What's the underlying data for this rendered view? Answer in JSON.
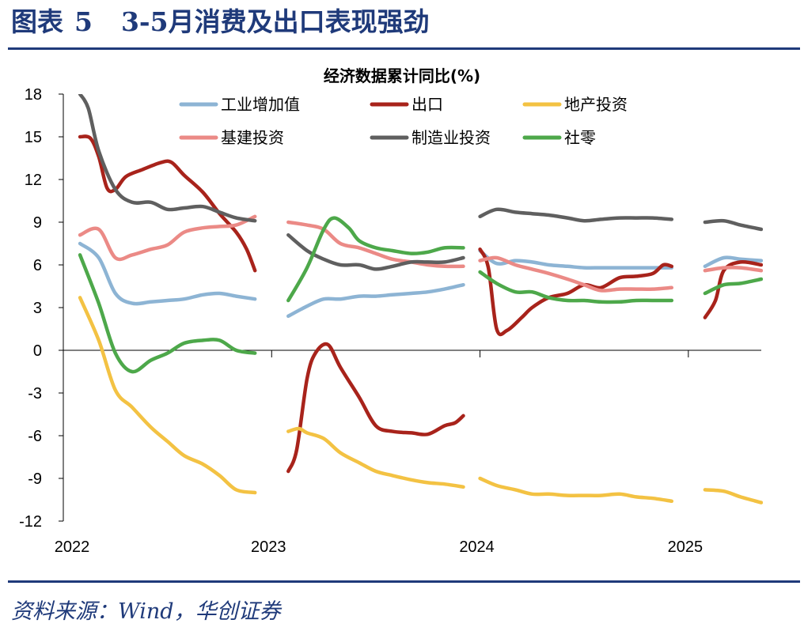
{
  "figure": {
    "label": "图表",
    "number": "5",
    "title": "3-5月消费及出口表现强劲",
    "source": "资料来源：Wind，华创证券"
  },
  "chart_data": {
    "type": "line",
    "title": "经济数据累计同比(%)",
    "xlabel": "",
    "ylabel": "",
    "ylim": [
      -12,
      18
    ],
    "y_ticks": [
      "18",
      "15",
      "12",
      "9",
      "6",
      "3",
      "0",
      "-3",
      "-6",
      "-9",
      "-12"
    ],
    "x_ticks": [
      "2022",
      "2023",
      "2024",
      "2025"
    ],
    "x_range": [
      2022.0,
      2025.35
    ],
    "legend_position": "top",
    "grid": false,
    "series": [
      {
        "name": "工业增加值",
        "color": "#8db4d4",
        "segments": [
          [
            [
              2022.08,
              7.5
            ],
            [
              2022.17,
              6.5
            ],
            [
              2022.25,
              4.0
            ],
            [
              2022.33,
              3.3
            ],
            [
              2022.42,
              3.4
            ],
            [
              2022.5,
              3.5
            ],
            [
              2022.58,
              3.6
            ],
            [
              2022.67,
              3.9
            ],
            [
              2022.75,
              4.0
            ],
            [
              2022.83,
              3.8
            ],
            [
              2022.92,
              3.6
            ]
          ],
          [
            [
              2023.08,
              2.4
            ],
            [
              2023.17,
              3.1
            ],
            [
              2023.25,
              3.6
            ],
            [
              2023.33,
              3.6
            ],
            [
              2023.42,
              3.8
            ],
            [
              2023.5,
              3.8
            ],
            [
              2023.58,
              3.9
            ],
            [
              2023.67,
              4.0
            ],
            [
              2023.75,
              4.1
            ],
            [
              2023.83,
              4.3
            ],
            [
              2023.92,
              4.6
            ]
          ],
          [
            [
              2024.0,
              7.0
            ],
            [
              2024.08,
              6.1
            ],
            [
              2024.17,
              6.3
            ],
            [
              2024.25,
              6.2
            ],
            [
              2024.33,
              6.0
            ],
            [
              2024.42,
              5.9
            ],
            [
              2024.5,
              5.8
            ],
            [
              2024.58,
              5.8
            ],
            [
              2024.67,
              5.8
            ],
            [
              2024.75,
              5.8
            ],
            [
              2024.83,
              5.8
            ],
            [
              2024.92,
              5.8
            ]
          ],
          [
            [
              2025.08,
              5.9
            ],
            [
              2025.17,
              6.5
            ],
            [
              2025.25,
              6.4
            ],
            [
              2025.35,
              6.3
            ]
          ]
        ]
      },
      {
        "name": "出口",
        "color": "#a8231b",
        "segments": [
          [
            [
              2022.08,
              15.0
            ],
            [
              2022.13,
              14.9
            ],
            [
              2022.17,
              13.6
            ],
            [
              2022.21,
              11.4
            ],
            [
              2022.25,
              11.3
            ],
            [
              2022.3,
              12.2
            ],
            [
              2022.38,
              12.7
            ],
            [
              2022.47,
              13.2
            ],
            [
              2022.52,
              13.2
            ],
            [
              2022.58,
              12.3
            ],
            [
              2022.67,
              11.1
            ],
            [
              2022.75,
              9.6
            ],
            [
              2022.83,
              8.3
            ],
            [
              2022.88,
              7.1
            ],
            [
              2022.92,
              5.6
            ]
          ],
          [
            [
              2023.08,
              -8.5
            ],
            [
              2023.12,
              -7.0
            ],
            [
              2023.17,
              -2.0
            ],
            [
              2023.21,
              -0.2
            ],
            [
              2023.27,
              0.4
            ],
            [
              2023.33,
              -1.2
            ],
            [
              2023.42,
              -3.3
            ],
            [
              2023.5,
              -5.3
            ],
            [
              2023.58,
              -5.7
            ],
            [
              2023.67,
              -5.8
            ],
            [
              2023.75,
              -5.9
            ],
            [
              2023.83,
              -5.3
            ],
            [
              2023.88,
              -5.1
            ],
            [
              2023.92,
              -4.6
            ]
          ],
          [
            [
              2024.0,
              7.1
            ],
            [
              2024.04,
              5.8
            ],
            [
              2024.08,
              1.5
            ],
            [
              2024.13,
              1.4
            ],
            [
              2024.2,
              2.3
            ],
            [
              2024.25,
              3.0
            ],
            [
              2024.33,
              3.7
            ],
            [
              2024.42,
              4.0
            ],
            [
              2024.5,
              4.6
            ],
            [
              2024.58,
              4.4
            ],
            [
              2024.67,
              5.1
            ],
            [
              2024.75,
              5.2
            ],
            [
              2024.83,
              5.4
            ],
            [
              2024.88,
              6.0
            ],
            [
              2024.92,
              5.9
            ]
          ],
          [
            [
              2025.08,
              2.3
            ],
            [
              2025.13,
              3.5
            ],
            [
              2025.17,
              5.6
            ],
            [
              2025.25,
              6.2
            ],
            [
              2025.35,
              6.0
            ]
          ]
        ]
      },
      {
        "name": "地产投资",
        "color": "#f3c243",
        "segments": [
          [
            [
              2022.08,
              3.7
            ],
            [
              2022.17,
              0.7
            ],
            [
              2022.25,
              -2.8
            ],
            [
              2022.33,
              -4.0
            ],
            [
              2022.42,
              -5.4
            ],
            [
              2022.5,
              -6.4
            ],
            [
              2022.58,
              -7.4
            ],
            [
              2022.67,
              -8.0
            ],
            [
              2022.75,
              -8.8
            ],
            [
              2022.83,
              -9.8
            ],
            [
              2022.92,
              -10.0
            ]
          ],
          [
            [
              2023.08,
              -5.7
            ],
            [
              2023.13,
              -5.5
            ],
            [
              2023.17,
              -5.8
            ],
            [
              2023.25,
              -6.2
            ],
            [
              2023.33,
              -7.2
            ],
            [
              2023.42,
              -7.9
            ],
            [
              2023.5,
              -8.5
            ],
            [
              2023.58,
              -8.8
            ],
            [
              2023.67,
              -9.1
            ],
            [
              2023.75,
              -9.3
            ],
            [
              2023.83,
              -9.4
            ],
            [
              2023.92,
              -9.6
            ]
          ],
          [
            [
              2024.0,
              -9.0
            ],
            [
              2024.08,
              -9.5
            ],
            [
              2024.17,
              -9.8
            ],
            [
              2024.25,
              -10.1
            ],
            [
              2024.33,
              -10.1
            ],
            [
              2024.42,
              -10.2
            ],
            [
              2024.5,
              -10.2
            ],
            [
              2024.58,
              -10.2
            ],
            [
              2024.67,
              -10.1
            ],
            [
              2024.75,
              -10.3
            ],
            [
              2024.83,
              -10.4
            ],
            [
              2024.92,
              -10.6
            ]
          ],
          [
            [
              2025.08,
              -9.8
            ],
            [
              2025.17,
              -9.9
            ],
            [
              2025.25,
              -10.3
            ],
            [
              2025.35,
              -10.7
            ]
          ]
        ]
      },
      {
        "name": "基建投资",
        "color": "#eb8a86",
        "segments": [
          [
            [
              2022.08,
              8.1
            ],
            [
              2022.17,
              8.5
            ],
            [
              2022.25,
              6.5
            ],
            [
              2022.33,
              6.7
            ],
            [
              2022.42,
              7.1
            ],
            [
              2022.5,
              7.4
            ],
            [
              2022.58,
              8.3
            ],
            [
              2022.67,
              8.6
            ],
            [
              2022.75,
              8.7
            ],
            [
              2022.83,
              8.8
            ],
            [
              2022.92,
              9.4
            ]
          ],
          [
            [
              2023.08,
              9.0
            ],
            [
              2023.17,
              8.8
            ],
            [
              2023.25,
              8.5
            ],
            [
              2023.33,
              7.5
            ],
            [
              2023.42,
              7.2
            ],
            [
              2023.5,
              6.8
            ],
            [
              2023.58,
              6.4
            ],
            [
              2023.67,
              6.2
            ],
            [
              2023.75,
              6.0
            ],
            [
              2023.83,
              5.9
            ],
            [
              2023.92,
              5.9
            ]
          ],
          [
            [
              2024.0,
              6.3
            ],
            [
              2024.08,
              6.5
            ],
            [
              2024.17,
              6.0
            ],
            [
              2024.25,
              5.7
            ],
            [
              2024.33,
              5.4
            ],
            [
              2024.42,
              5.0
            ],
            [
              2024.5,
              4.6
            ],
            [
              2024.58,
              4.2
            ],
            [
              2024.67,
              4.3
            ],
            [
              2024.75,
              4.3
            ],
            [
              2024.83,
              4.3
            ],
            [
              2024.92,
              4.4
            ]
          ],
          [
            [
              2025.08,
              5.6
            ],
            [
              2025.17,
              5.8
            ],
            [
              2025.25,
              5.8
            ],
            [
              2025.35,
              5.6
            ]
          ]
        ]
      },
      {
        "name": "制造业投资",
        "color": "#5f5f5f",
        "segments": [
          [
            [
              2022.08,
              18.0
            ],
            [
              2022.12,
              17.0
            ],
            [
              2022.17,
              14.0
            ],
            [
              2022.25,
              11.3
            ],
            [
              2022.33,
              10.4
            ],
            [
              2022.42,
              10.4
            ],
            [
              2022.5,
              9.9
            ],
            [
              2022.58,
              10.0
            ],
            [
              2022.67,
              10.1
            ],
            [
              2022.75,
              9.7
            ],
            [
              2022.83,
              9.3
            ],
            [
              2022.92,
              9.1
            ]
          ],
          [
            [
              2023.08,
              8.1
            ],
            [
              2023.17,
              7.0
            ],
            [
              2023.25,
              6.4
            ],
            [
              2023.33,
              6.0
            ],
            [
              2023.42,
              6.0
            ],
            [
              2023.5,
              5.7
            ],
            [
              2023.58,
              5.9
            ],
            [
              2023.67,
              6.2
            ],
            [
              2023.75,
              6.2
            ],
            [
              2023.83,
              6.2
            ],
            [
              2023.92,
              6.5
            ]
          ],
          [
            [
              2024.0,
              9.4
            ],
            [
              2024.08,
              9.9
            ],
            [
              2024.17,
              9.7
            ],
            [
              2024.25,
              9.6
            ],
            [
              2024.33,
              9.5
            ],
            [
              2024.42,
              9.3
            ],
            [
              2024.5,
              9.1
            ],
            [
              2024.58,
              9.2
            ],
            [
              2024.67,
              9.3
            ],
            [
              2024.75,
              9.3
            ],
            [
              2024.83,
              9.3
            ],
            [
              2024.92,
              9.2
            ]
          ],
          [
            [
              2025.08,
              9.0
            ],
            [
              2025.17,
              9.1
            ],
            [
              2025.25,
              8.8
            ],
            [
              2025.35,
              8.5
            ]
          ]
        ]
      },
      {
        "name": "社零",
        "color": "#4da84a",
        "segments": [
          [
            [
              2022.08,
              6.7
            ],
            [
              2022.17,
              3.3
            ],
            [
              2022.25,
              -0.2
            ],
            [
              2022.33,
              -1.5
            ],
            [
              2022.42,
              -0.7
            ],
            [
              2022.5,
              -0.2
            ],
            [
              2022.58,
              0.5
            ],
            [
              2022.67,
              0.7
            ],
            [
              2022.75,
              0.7
            ],
            [
              2022.83,
              0.0
            ],
            [
              2022.92,
              -0.2
            ]
          ],
          [
            [
              2023.08,
              3.5
            ],
            [
              2023.17,
              5.8
            ],
            [
              2023.25,
              8.5
            ],
            [
              2023.3,
              9.3
            ],
            [
              2023.37,
              8.6
            ],
            [
              2023.42,
              7.7
            ],
            [
              2023.5,
              7.2
            ],
            [
              2023.58,
              7.0
            ],
            [
              2023.67,
              6.8
            ],
            [
              2023.75,
              6.9
            ],
            [
              2023.83,
              7.2
            ],
            [
              2023.92,
              7.2
            ]
          ],
          [
            [
              2024.0,
              5.5
            ],
            [
              2024.08,
              4.7
            ],
            [
              2024.17,
              4.1
            ],
            [
              2024.25,
              4.1
            ],
            [
              2024.33,
              3.7
            ],
            [
              2024.42,
              3.5
            ],
            [
              2024.5,
              3.5
            ],
            [
              2024.58,
              3.4
            ],
            [
              2024.67,
              3.4
            ],
            [
              2024.75,
              3.5
            ],
            [
              2024.83,
              3.5
            ],
            [
              2024.92,
              3.5
            ]
          ],
          [
            [
              2025.08,
              4.0
            ],
            [
              2025.17,
              4.6
            ],
            [
              2025.25,
              4.7
            ],
            [
              2025.35,
              5.0
            ]
          ]
        ]
      }
    ]
  }
}
